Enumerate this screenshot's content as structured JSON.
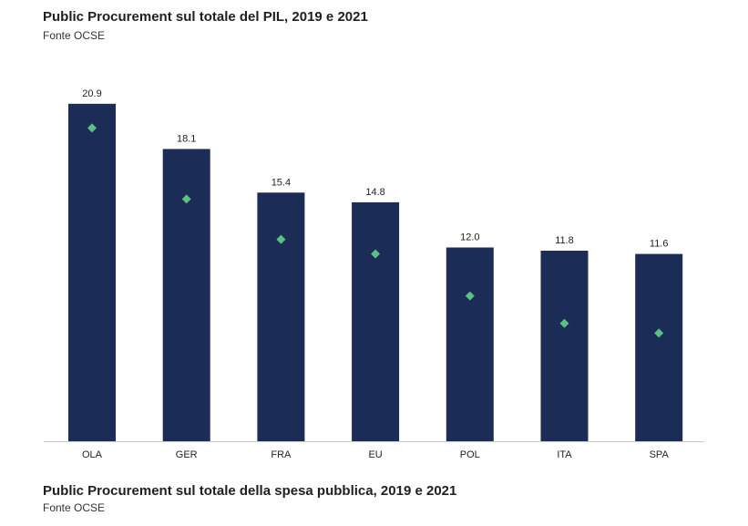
{
  "header": {
    "title": "Public Procurement sul totale del PIL, 2019 e 2021",
    "source": "Fonte OCSE"
  },
  "footer": {
    "title": "Public Procurement sul totale della spesa pubblica, 2019 e 2021",
    "source": "Fonte OCSE"
  },
  "colors": {
    "bar": "#1b2d57",
    "marker": "#5cbf84",
    "axis": "#c8c8c8"
  },
  "chart_data": {
    "type": "bar",
    "title": "Public Procurement sul totale del PIL, 2019 e 2021",
    "subtitle": "Fonte OCSE",
    "categories": [
      "OLA",
      "GER",
      "FRA",
      "EU",
      "POL",
      "ITA",
      "SPA"
    ],
    "series": [
      {
        "values": [
          20.9,
          18.1,
          15.4,
          14.8,
          12.0,
          11.8,
          11.6
        ],
        "style": "bar",
        "labels": [
          "20.9",
          "18.1",
          "15.4",
          "14.8",
          "12.0",
          "11.8",
          "11.6"
        ]
      },
      {
        "values": [
          19.4,
          15.0,
          12.5,
          11.6,
          9.0,
          7.3,
          6.7
        ],
        "style": "diamond-marker"
      }
    ],
    "ylim": [
      0,
      21.4
    ],
    "grid": false,
    "legend": "none"
  }
}
